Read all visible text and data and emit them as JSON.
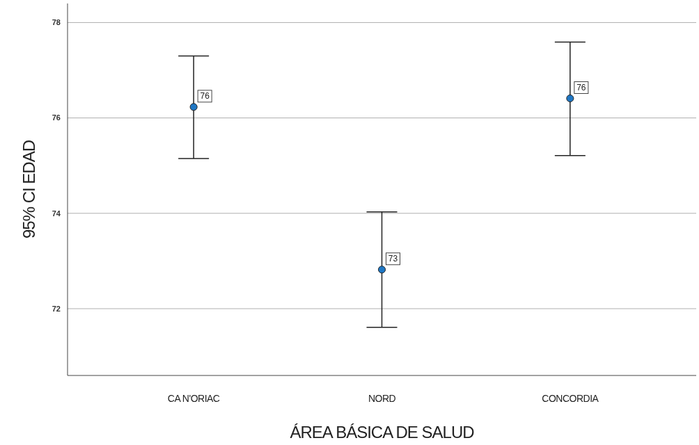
{
  "chart_data": {
    "type": "scatter",
    "xlabel": "ÁREA BÁSICA DE SALUD",
    "ylabel": "95% CI EDAD",
    "categories": [
      "CA N'ORIAC",
      "NORD",
      "CONCORDIA"
    ],
    "values": [
      76.23,
      72.82,
      76.41
    ],
    "errors": [
      [
        75.15,
        77.3
      ],
      [
        71.61,
        74.03
      ],
      [
        75.21,
        77.59
      ]
    ],
    "value_labels": [
      "76",
      "73",
      "76"
    ],
    "color": "#1f77c4",
    "marker": "circle",
    "ylim": [
      70.6,
      78.4
    ],
    "yticks": [
      72,
      74,
      76,
      78
    ],
    "grid": "y"
  }
}
